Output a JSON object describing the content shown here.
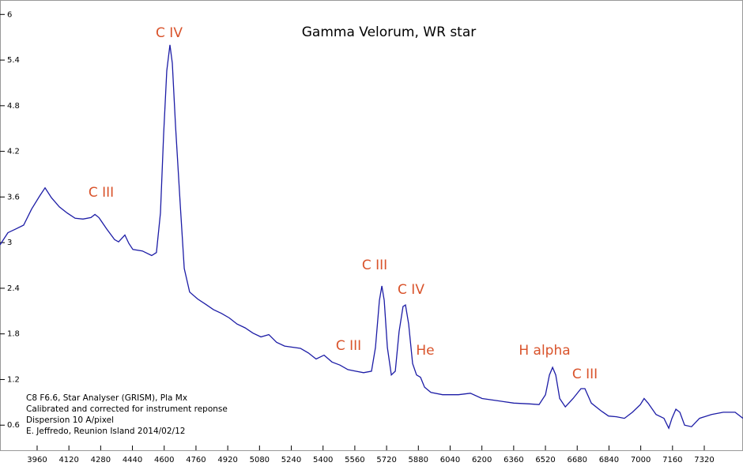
{
  "chart_data": {
    "type": "line",
    "title": "Gamma Velorum, WR star",
    "annotations": [
      "C IV",
      "C III",
      "C III",
      "C IV",
      "C III",
      "He",
      "H alpha",
      "C III"
    ],
    "notes": [
      "C8 F6.6, Star Analyser (GRISM), Pla Mx",
      "Calibrated and corrected for instrument reponse",
      "Dispersion 10 A/pixel",
      "E. Jeffredo, Reunion Island 2014/02/12"
    ],
    "x": [
      3773,
      3813,
      3853,
      3892,
      3932,
      3972,
      4000,
      4032,
      4072,
      4111,
      4151,
      4191,
      4231,
      4251,
      4271,
      4310,
      4350,
      4370,
      4402,
      4422,
      4442,
      4490,
      4537,
      4561,
      4581,
      4597,
      4613,
      4629,
      4641,
      4657,
      4681,
      4701,
      4728,
      4768,
      4808,
      4848,
      4888,
      4928,
      4967,
      5007,
      5047,
      5087,
      5127,
      5166,
      5206,
      5286,
      5326,
      5365,
      5405,
      5445,
      5485,
      5525,
      5564,
      5604,
      5644,
      5664,
      5684,
      5696,
      5708,
      5724,
      5744,
      5764,
      5783,
      5803,
      5815,
      5831,
      5851,
      5871,
      5891,
      5911,
      5943,
      6002,
      6082,
      6142,
      6201,
      6281,
      6361,
      6440,
      6488,
      6520,
      6540,
      6556,
      6572,
      6592,
      6620,
      6659,
      6699,
      6719,
      6751,
      6799,
      6838,
      6878,
      6918,
      6958,
      6998,
      7017,
      7037,
      7077,
      7117,
      7141,
      7157,
      7177,
      7197,
      7221,
      7256,
      7296,
      7356,
      7416,
      7475,
      7515
    ],
    "series": [
      {
        "name": "Gamma Velorum",
        "color": "#1c1ca6",
        "values": [
          2.97,
          3.13,
          3.18,
          3.23,
          3.44,
          3.61,
          3.72,
          3.59,
          3.47,
          3.39,
          3.32,
          3.31,
          3.33,
          3.37,
          3.33,
          3.18,
          3.04,
          3.01,
          3.1,
          2.99,
          2.91,
          2.89,
          2.83,
          2.87,
          3.39,
          4.42,
          5.26,
          5.6,
          5.36,
          4.53,
          3.49,
          2.66,
          2.35,
          2.26,
          2.19,
          2.12,
          2.07,
          2.01,
          1.93,
          1.88,
          1.81,
          1.76,
          1.79,
          1.69,
          1.64,
          1.61,
          1.55,
          1.47,
          1.52,
          1.43,
          1.39,
          1.33,
          1.31,
          1.29,
          1.31,
          1.62,
          2.24,
          2.43,
          2.24,
          1.62,
          1.26,
          1.31,
          1.83,
          2.16,
          2.18,
          1.93,
          1.41,
          1.26,
          1.23,
          1.1,
          1.03,
          1.0,
          1.0,
          1.02,
          0.95,
          0.92,
          0.89,
          0.88,
          0.87,
          1.0,
          1.26,
          1.36,
          1.26,
          0.95,
          0.84,
          0.95,
          1.08,
          1.08,
          0.89,
          0.79,
          0.72,
          0.71,
          0.69,
          0.77,
          0.87,
          0.95,
          0.89,
          0.74,
          0.69,
          0.56,
          0.69,
          0.81,
          0.77,
          0.6,
          0.58,
          0.69,
          0.74,
          0.77,
          0.77,
          0.69
        ]
      }
    ],
    "xlim": [
      3773,
      7515
    ],
    "ylim": [
      0.27,
      6.19
    ],
    "xticks": [
      3960,
      4120,
      4280,
      4440,
      4600,
      4760,
      4920,
      5080,
      5240,
      5400,
      5560,
      5720,
      5880,
      6040,
      6200,
      6360,
      6520,
      6680,
      6840,
      7000,
      7160,
      7320
    ],
    "yticks": [
      0.6,
      1.2,
      1.8,
      2.4,
      3,
      3.6,
      4.2,
      4.8,
      5.4,
      6
    ]
  }
}
